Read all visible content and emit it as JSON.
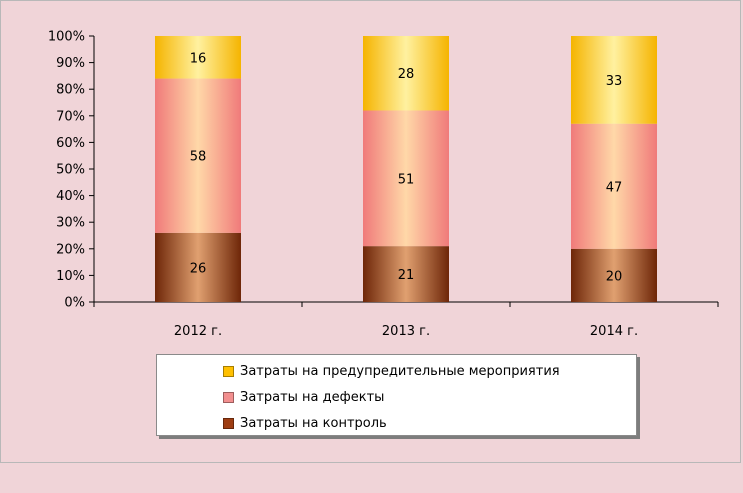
{
  "chart_data": {
    "type": "bar",
    "stacked": true,
    "percent": true,
    "categories": [
      "2012 г.",
      "2013 г.",
      "2014 г."
    ],
    "series": [
      {
        "name": "Затраты на контроль",
        "values": [
          26,
          21,
          20
        ],
        "color": "#9e3d12"
      },
      {
        "name": "Затраты на дефекты",
        "values": [
          58,
          51,
          47
        ],
        "color": "#f28f8f"
      },
      {
        "name": "Затраты на предупредительные мероприятия",
        "values": [
          16,
          28,
          33
        ],
        "color": "#ffc000"
      }
    ],
    "yticks": [
      "0%",
      "10%",
      "20%",
      "30%",
      "40%",
      "50%",
      "60%",
      "70%",
      "80%",
      "90%",
      "100%"
    ],
    "ylim": [
      0,
      100
    ],
    "grid": false,
    "legend_position": "bottom",
    "legend_order": [
      2,
      1,
      0
    ],
    "title": "",
    "xlabel": "",
    "ylabel": ""
  }
}
